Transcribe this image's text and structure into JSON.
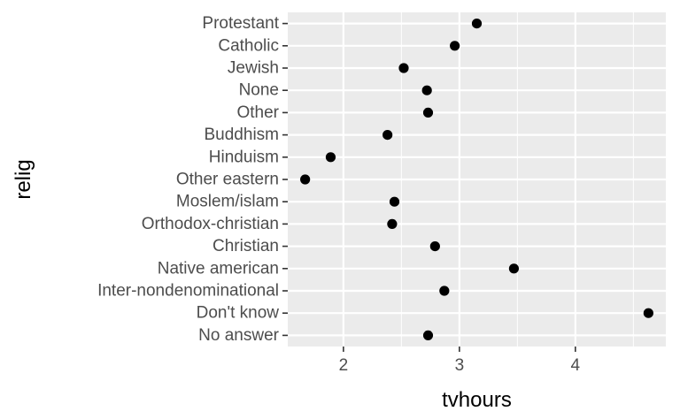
{
  "chart_data": {
    "type": "scatter",
    "xlabel": "tvhours",
    "ylabel": "relig",
    "xlim": [
      1.52,
      4.78
    ],
    "xticks": [
      2,
      3,
      4
    ],
    "categories": [
      "Protestant",
      "Catholic",
      "Jewish",
      "None",
      "Other",
      "Buddhism",
      "Hinduism",
      "Other eastern",
      "Moslem/islam",
      "Orthodox-christian",
      "Christian",
      "Native american",
      "Inter-nondenominational",
      "Don't know",
      "No answer"
    ],
    "values": [
      3.15,
      2.96,
      2.52,
      2.72,
      2.73,
      2.38,
      1.89,
      1.67,
      2.44,
      2.42,
      2.79,
      3.47,
      2.87,
      4.63,
      2.73
    ],
    "grid": true,
    "legend": "none",
    "colors": {
      "panel": "#ebebeb",
      "grid": "#ffffff",
      "point": "#000000"
    }
  }
}
